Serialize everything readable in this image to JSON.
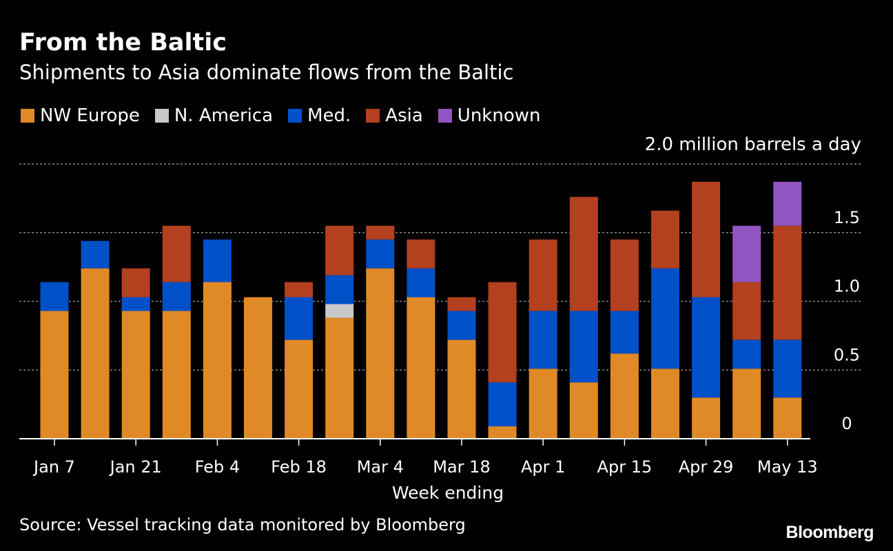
{
  "title": "From the Baltic",
  "subtitle": "Shipments to Asia dominate flows from the Baltic",
  "legend": [
    {
      "label": "NW Europe",
      "color": "#E08A27"
    },
    {
      "label": "N. America",
      "color": "#C9C9C9"
    },
    {
      "label": "Med.",
      "color": "#0050C8"
    },
    {
      "label": "Asia",
      "color": "#B3401E"
    },
    {
      "label": "Unknown",
      "color": "#9254C1"
    }
  ],
  "unit_label": "2.0 million barrels a day",
  "source": "Source: Vessel tracking data monitored by Bloomberg",
  "logo": "Bloomberg",
  "chart_data": {
    "type": "bar",
    "stacked": true,
    "title": "From the Baltic",
    "subtitle": "Shipments to Asia dominate flows from the Baltic",
    "xlabel": "Week ending",
    "ylabel": "million barrels a day",
    "ylim": [
      0,
      2.0
    ],
    "y_ticks": [
      0,
      0.5,
      1.0,
      1.5,
      2.0
    ],
    "y_tick_labels": [
      "0",
      "0.5",
      "1.0",
      "1.5",
      "2.0 million barrels a day"
    ],
    "x_tick_labels": [
      {
        "index": 0,
        "label": "Jan 7"
      },
      {
        "index": 2,
        "label": "Jan 21"
      },
      {
        "index": 4,
        "label": "Feb 4"
      },
      {
        "index": 6,
        "label": "Feb 18"
      },
      {
        "index": 8,
        "label": "Mar 4"
      },
      {
        "index": 10,
        "label": "Mar 18"
      },
      {
        "index": 12,
        "label": "Apr 1"
      },
      {
        "index": 14,
        "label": "Apr 15"
      },
      {
        "index": 16,
        "label": "Apr 29"
      },
      {
        "index": 18,
        "label": "May 13"
      }
    ],
    "categories": [
      "Jan 7",
      "Jan 14",
      "Jan 21",
      "Jan 28",
      "Feb 4",
      "Feb 11",
      "Feb 18",
      "Feb 25",
      "Mar 4",
      "Mar 11",
      "Mar 18",
      "Mar 25",
      "Apr 1",
      "Apr 8",
      "Apr 15",
      "Apr 22",
      "Apr 29",
      "May 6",
      "May 13"
    ],
    "series": [
      {
        "name": "NW Europe",
        "color": "#E08A27",
        "values": [
          0.93,
          1.24,
          0.93,
          0.93,
          1.14,
          1.03,
          0.72,
          0.88,
          1.24,
          1.03,
          0.72,
          0.09,
          0.51,
          0.41,
          0.62,
          0.51,
          0.3,
          0.51,
          0.3
        ]
      },
      {
        "name": "N. America",
        "color": "#C9C9C9",
        "values": [
          0,
          0,
          0,
          0,
          0,
          0,
          0,
          0.1,
          0,
          0,
          0,
          0,
          0,
          0,
          0,
          0,
          0,
          0,
          0
        ]
      },
      {
        "name": "Med.",
        "color": "#0050C8",
        "values": [
          0.21,
          0.2,
          0.1,
          0.21,
          0.31,
          0,
          0.31,
          0.21,
          0.21,
          0.21,
          0.21,
          0.32,
          0.42,
          0.52,
          0.31,
          0.73,
          0.73,
          0.21,
          0.42
        ]
      },
      {
        "name": "Asia",
        "color": "#B3401E",
        "values": [
          0,
          0,
          0.21,
          0.41,
          0,
          0,
          0.11,
          0.36,
          0.1,
          0.21,
          0.1,
          0.73,
          0.52,
          0.83,
          0.52,
          0.42,
          0.84,
          0.42,
          0.83
        ]
      },
      {
        "name": "Unknown",
        "color": "#9254C1",
        "values": [
          0,
          0,
          0,
          0,
          0,
          0,
          0,
          0,
          0,
          0,
          0,
          0,
          0,
          0,
          0,
          0,
          0,
          0.41,
          0.32
        ]
      }
    ]
  }
}
